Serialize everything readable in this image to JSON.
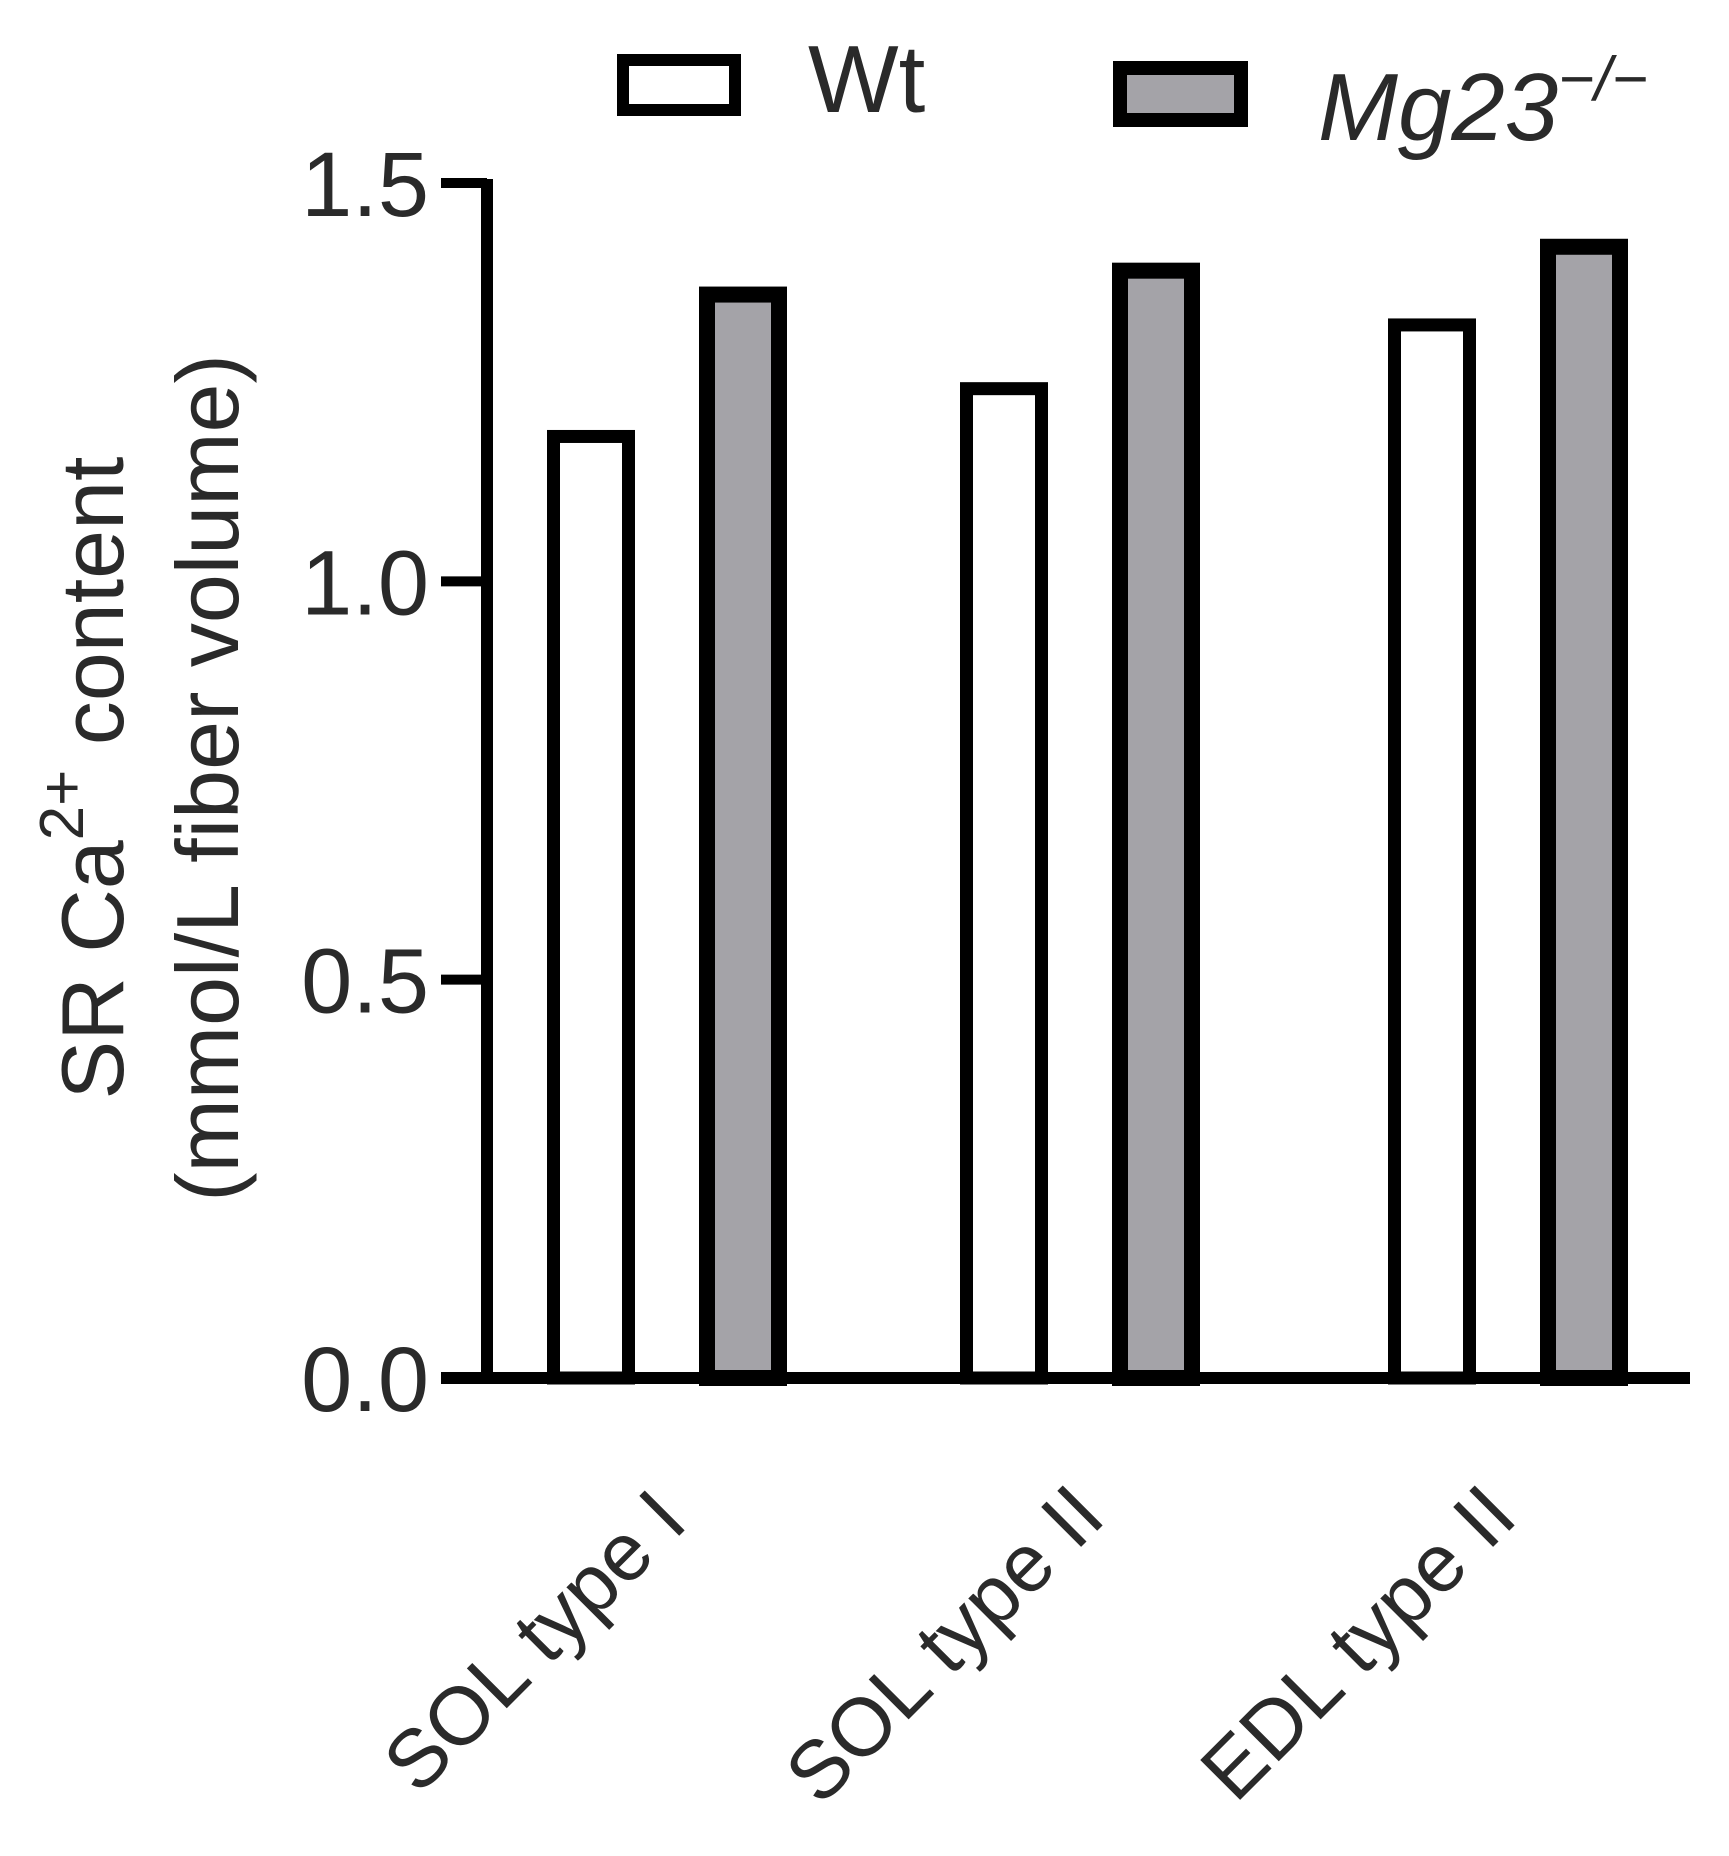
{
  "chart_data": {
    "type": "bar",
    "categories": [
      "SOL type I",
      "SOL type II",
      "EDL type II"
    ],
    "series": [
      {
        "name": "Wt",
        "values": [
          1.19,
          1.25,
          1.33
        ],
        "fill": "#ffffff"
      },
      {
        "name": "Mg23",
        "name_superscript": "−/−",
        "values": [
          1.37,
          1.4,
          1.43
        ],
        "fill": "#a4a3a8"
      }
    ],
    "ylabel": {
      "line1_prefix": "SR Ca",
      "line1_superscript": "2+",
      "line1_suffix": " content",
      "line2": "(mmol/L fiber volume)"
    },
    "ylim": [
      0,
      1.5
    ],
    "yticks": [
      "0.0",
      "0.5",
      "1.0",
      "1.5"
    ],
    "ytick_values": [
      0,
      0.5,
      1.0,
      1.5
    ],
    "legend_position": "top",
    "grid": false,
    "stroke_color": "#000000"
  }
}
